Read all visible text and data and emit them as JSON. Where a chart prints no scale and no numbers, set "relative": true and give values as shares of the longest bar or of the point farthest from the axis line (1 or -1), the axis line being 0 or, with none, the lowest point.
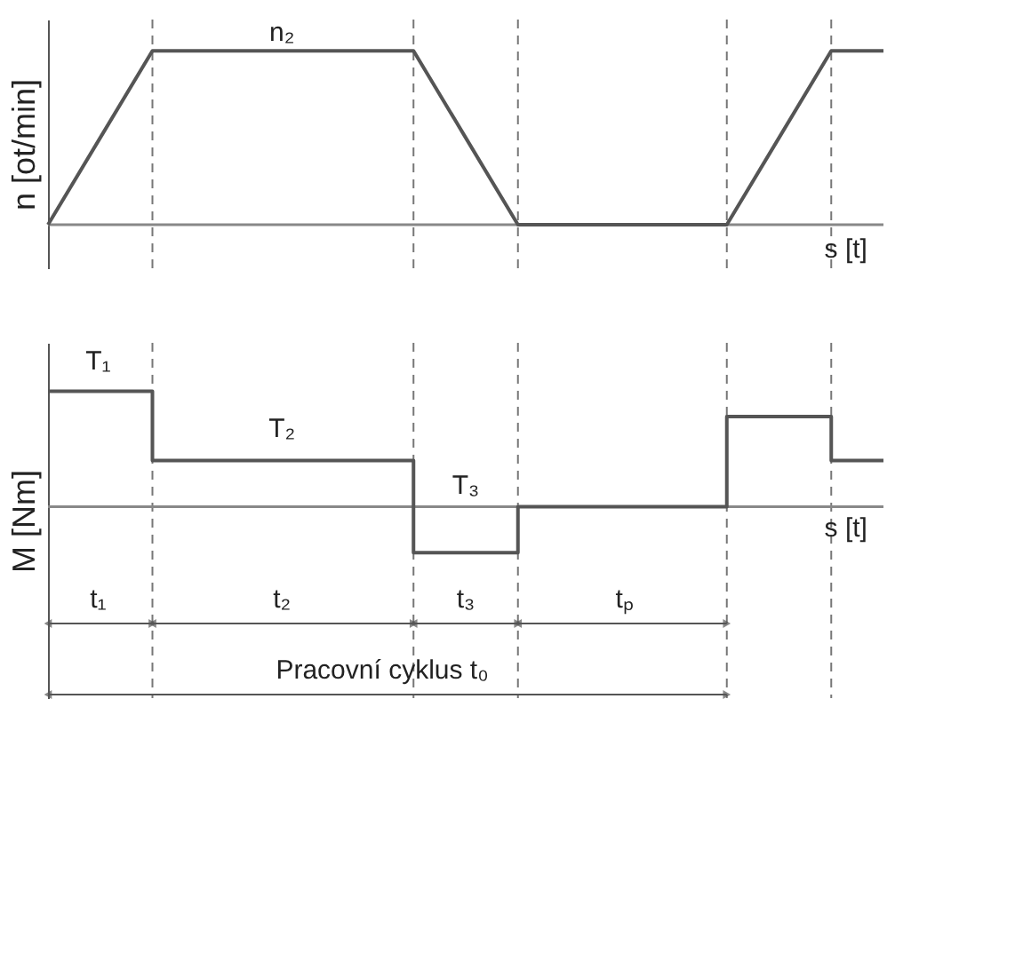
{
  "chart_data": [
    {
      "type": "line",
      "relative": true,
      "ylabel": "n [ot/min]",
      "grid": "x",
      "marker": "none",
      "line_style": "solid",
      "categories": [
        null,
        null,
        null,
        null,
        null,
        null,
        null,
        null,
        null,
        null,
        null,
        null,
        null,
        null,
        null,
        null,
        null
      ],
      "series": [
        {
          "color": "#555555",
          "values": [
            0,
            0.5,
            1,
            1,
            1,
            1,
            1,
            1,
            0.5,
            0,
            0,
            0,
            0,
            0,
            0.5,
            1,
            1
          ]
        }
      ],
      "annotations": [
        "n₂",
        "s [t]"
      ]
    },
    {
      "type": "step",
      "relative": true,
      "ylabel": "M [Nm]",
      "grid": "x",
      "marker": "none",
      "line_style": "solid",
      "categories": [
        null,
        null,
        null,
        null,
        null,
        null,
        null,
        null,
        null,
        null,
        null,
        null,
        null,
        null,
        null,
        null,
        null
      ],
      "series": [
        {
          "color": "#555555",
          "values": [
            1,
            1,
            0.4,
            0.4,
            0.4,
            0.4,
            0.4,
            -0.4,
            -0.4,
            0,
            0,
            0,
            0,
            0.78,
            0.78,
            0.4,
            0.4
          ]
        }
      ],
      "annotations": [
        "T₁",
        "T₂",
        "T₃",
        "t₁",
        "t₂",
        "t₃",
        "tₚ",
        "s [t]",
        "Pracovní cyklus t₀"
      ]
    }
  ]
}
